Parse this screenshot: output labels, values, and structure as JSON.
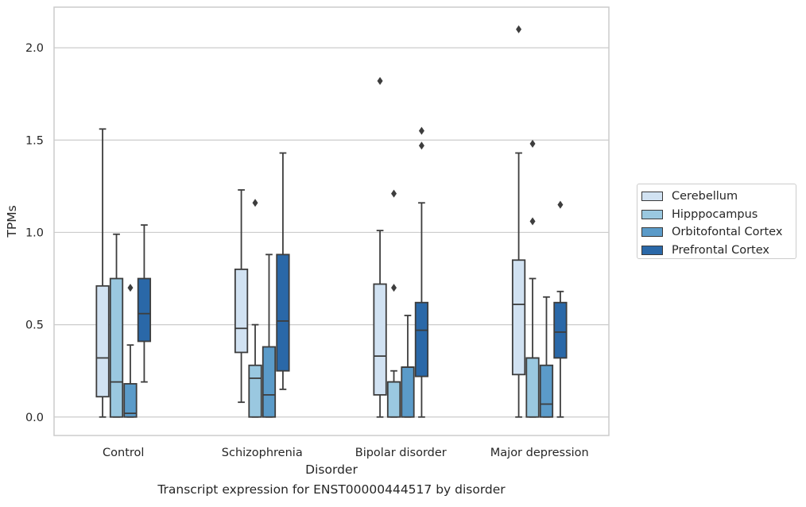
{
  "caption": "Transcript expression for ENST00000444517 by disorder",
  "chart_data": {
    "type": "box",
    "title": "",
    "xlabel": "Disorder",
    "ylabel": "TPMs",
    "ylim": [
      -0.1,
      2.22
    ],
    "yticks": [
      "0.0",
      "0.5",
      "1.0",
      "1.5",
      "2.0"
    ],
    "grid": "horizontal",
    "legend_position": "right, outside plot",
    "categories": [
      "Control",
      "Schizophrenia",
      "Bipolar disorder",
      "Major depression"
    ],
    "series": [
      {
        "name": "Cerebellum",
        "color": "#d1e2f2",
        "boxes": [
          {
            "whislo": 0.0,
            "q1": 0.11,
            "med": 0.32,
            "q3": 0.71,
            "whishi": 1.56,
            "fliers": []
          },
          {
            "whislo": 0.08,
            "q1": 0.35,
            "med": 0.48,
            "q3": 0.8,
            "whishi": 1.23,
            "fliers": []
          },
          {
            "whislo": 0.0,
            "q1": 0.12,
            "med": 0.33,
            "q3": 0.72,
            "whishi": 1.01,
            "fliers": [
              1.82
            ]
          },
          {
            "whislo": 0.0,
            "q1": 0.23,
            "med": 0.61,
            "q3": 0.85,
            "whishi": 1.43,
            "fliers": [
              2.1
            ]
          }
        ]
      },
      {
        "name": "Hipppocampus",
        "color": "#9ac8e0",
        "boxes": [
          {
            "whislo": 0.0,
            "q1": 0.0,
            "med": 0.19,
            "q3": 0.75,
            "whishi": 0.99,
            "fliers": []
          },
          {
            "whislo": 0.0,
            "q1": 0.0,
            "med": 0.21,
            "q3": 0.28,
            "whishi": 0.5,
            "fliers": [
              1.16
            ]
          },
          {
            "whislo": 0.0,
            "q1": 0.0,
            "med": 0.19,
            "q3": 0.19,
            "whishi": 0.25,
            "fliers": [
              0.7,
              1.21
            ]
          },
          {
            "whislo": 0.0,
            "q1": 0.0,
            "med": 0.32,
            "q3": 0.32,
            "whishi": 0.75,
            "fliers": [
              1.06,
              1.48
            ]
          }
        ]
      },
      {
        "name": "Orbitofontal Cortex",
        "color": "#5b9bc9",
        "boxes": [
          {
            "whislo": 0.0,
            "q1": 0.0,
            "med": 0.02,
            "q3": 0.18,
            "whishi": 0.39,
            "fliers": [
              0.7
            ]
          },
          {
            "whislo": 0.0,
            "q1": 0.0,
            "med": 0.12,
            "q3": 0.38,
            "whishi": 0.88,
            "fliers": []
          },
          {
            "whislo": 0.0,
            "q1": 0.0,
            "med": 0.27,
            "q3": 0.27,
            "whishi": 0.55,
            "fliers": []
          },
          {
            "whislo": 0.0,
            "q1": 0.0,
            "med": 0.07,
            "q3": 0.28,
            "whishi": 0.65,
            "fliers": []
          }
        ]
      },
      {
        "name": "Prefrontal Cortex",
        "color": "#2a68a8",
        "boxes": [
          {
            "whislo": 0.19,
            "q1": 0.41,
            "med": 0.56,
            "q3": 0.75,
            "whishi": 1.04,
            "fliers": []
          },
          {
            "whislo": 0.15,
            "q1": 0.25,
            "med": 0.52,
            "q3": 0.88,
            "whishi": 1.43,
            "fliers": []
          },
          {
            "whislo": 0.0,
            "q1": 0.22,
            "med": 0.47,
            "q3": 0.62,
            "whishi": 1.16,
            "fliers": [
              1.47,
              1.55
            ]
          },
          {
            "whislo": 0.0,
            "q1": 0.32,
            "med": 0.46,
            "q3": 0.62,
            "whishi": 0.68,
            "fliers": [
              1.15
            ]
          }
        ]
      }
    ]
  }
}
